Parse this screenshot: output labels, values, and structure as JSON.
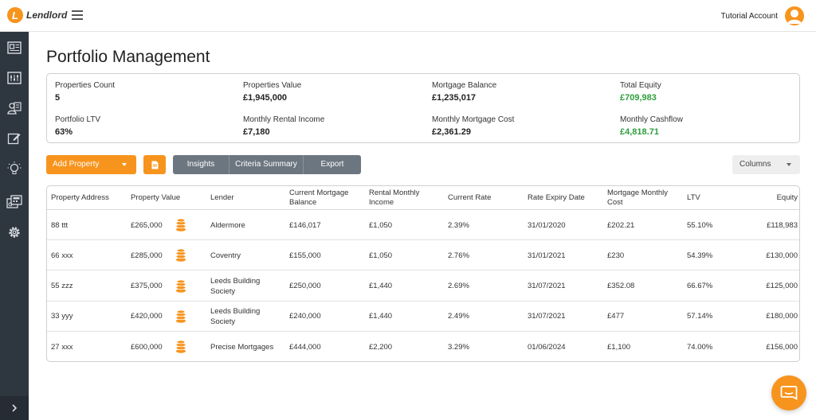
{
  "header": {
    "logo_letter": "L",
    "brand": "Lendlord",
    "account_name": "Tutorial Account"
  },
  "sidebar": {
    "icons": [
      "newspaper-icon",
      "dashboard-icon",
      "contacts-icon",
      "edit-icon",
      "lightbulb-icon",
      "calculator-icon",
      "gear-icon"
    ],
    "collapse_icon": "chevron-right-icon"
  },
  "page": {
    "title": "Portfolio Management"
  },
  "summary": {
    "properties_count": {
      "label": "Properties Count",
      "value": "5"
    },
    "properties_value": {
      "label": "Properties Value",
      "value": "£1,945,000"
    },
    "mortgage_balance": {
      "label": "Mortgage Balance",
      "value": "£1,235,017"
    },
    "total_equity": {
      "label": "Total Equity",
      "value": "£709,983"
    },
    "portfolio_ltv": {
      "label": "Portfolio LTV",
      "value": "63%"
    },
    "monthly_rental_income": {
      "label": "Monthly Rental Income",
      "value": "£7,180"
    },
    "monthly_mortgage_cost": {
      "label": "Monthly Mortgage Cost",
      "value": "£2,361.29"
    },
    "monthly_cashflow": {
      "label": "Monthly Cashflow",
      "value": "£4,818.71"
    }
  },
  "toolbar": {
    "add_property": "Add Property",
    "insights": "Insights",
    "criteria_summary": "Criteria Summary",
    "export": "Export",
    "columns": "Columns"
  },
  "colors": {
    "accent": "#f7941d",
    "sidebar": "#2e3640",
    "positive": "#2e9e3c",
    "button_grey": "#6c7680"
  },
  "table": {
    "headers": {
      "address": "Property Address",
      "value": "Property Value",
      "lender": "Lender",
      "mortgage_balance": "Current Mortgage Balance",
      "rental_income": "Rental Monthly Income",
      "rate": "Current Rate",
      "expiry": "Rate Expiry Date",
      "monthly_cost": "Mortgage Monthly Cost",
      "ltv": "LTV",
      "equity": "Equity"
    },
    "rows": [
      {
        "address": "88 ttt",
        "value": "£265,000",
        "lender": "Aldermore",
        "mortgage_balance": "£146,017",
        "rental_income": "£1,050",
        "rate": "2.39%",
        "expiry": "31/01/2020",
        "monthly_cost": "£202.21",
        "ltv": "55.10%",
        "equity": "£118,983"
      },
      {
        "address": "66 xxx",
        "value": "£285,000",
        "lender": "Coventry",
        "mortgage_balance": "£155,000",
        "rental_income": "£1,050",
        "rate": "2.76%",
        "expiry": "31/01/2021",
        "monthly_cost": "£230",
        "ltv": "54.39%",
        "equity": "£130,000"
      },
      {
        "address": "55 zzz",
        "value": "£375,000",
        "lender": "Leeds Building Society",
        "mortgage_balance": "£250,000",
        "rental_income": "£1,440",
        "rate": "2.69%",
        "expiry": "31/07/2021",
        "monthly_cost": "£352.08",
        "ltv": "66.67%",
        "equity": "£125,000"
      },
      {
        "address": "33 yyy",
        "value": "£420,000",
        "lender": "Leeds Building Society",
        "mortgage_balance": "£240,000",
        "rental_income": "£1,440",
        "rate": "2.49%",
        "expiry": "31/07/2021",
        "monthly_cost": "£477",
        "ltv": "57.14%",
        "equity": "£180,000"
      },
      {
        "address": "27 xxx",
        "value": "£600,000",
        "lender": "Precise Mortgages",
        "mortgage_balance": "£444,000",
        "rental_income": "£2,200",
        "rate": "3.29%",
        "expiry": "01/06/2024",
        "monthly_cost": "£1,100",
        "ltv": "74.00%",
        "equity": "£156,000"
      }
    ]
  }
}
